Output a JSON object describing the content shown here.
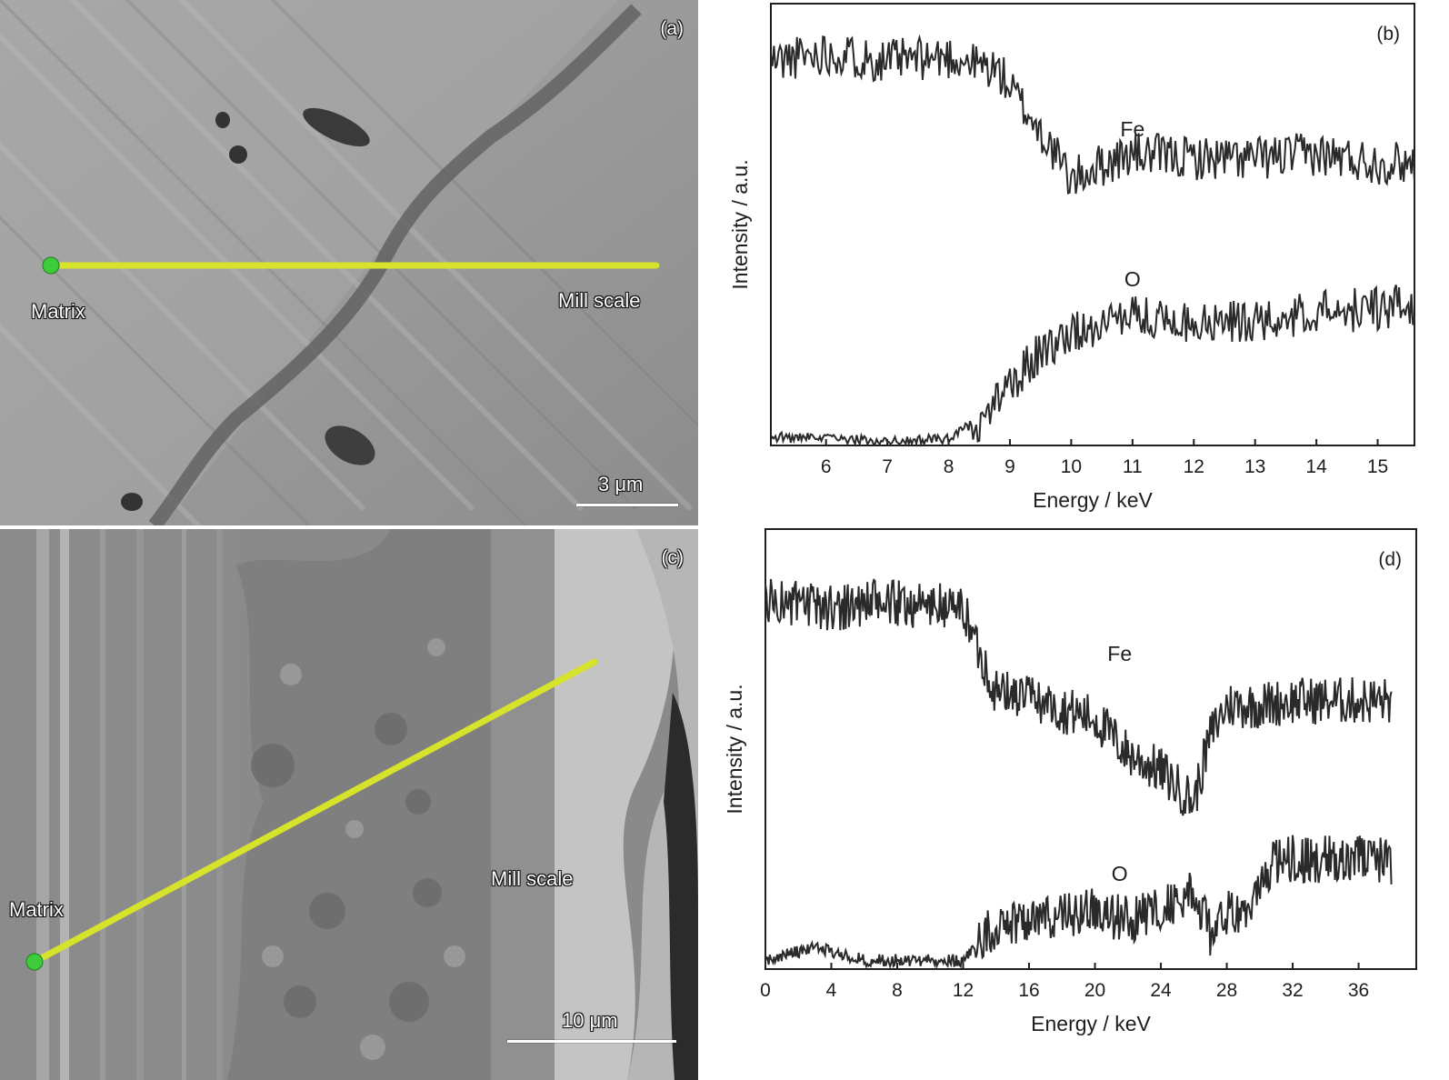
{
  "panels": {
    "a": {
      "letter": "(a)",
      "start_label": "Matrix",
      "end_label": "Mill scale",
      "scale_bar_label": "3 μm"
    },
    "b": {
      "letter": "(b)",
      "chart_data": {
        "type": "line",
        "xlabel": "Energy / keV",
        "ylabel": "Intensity / a.u.",
        "xlim": [
          5.1,
          15.6
        ],
        "ylim": [
          0,
          100
        ],
        "xticks": [
          "6",
          "7",
          "8",
          "9",
          "10",
          "11",
          "12",
          "13",
          "14",
          "15"
        ],
        "yticks": false,
        "grid": false,
        "series": [
          {
            "name": "Fe",
            "color": "#2a2a2a",
            "x": [
              5.1,
              6.0,
              7.0,
              8.0,
              8.8,
              9.2,
              9.6,
              10.0,
              10.4,
              11.0,
              12.0,
              13.0,
              14.0,
              15.0,
              15.6
            ],
            "y": [
              87,
              89,
              87,
              88,
              85,
              77,
              69,
              60,
              63,
              66,
              65,
              65,
              66,
              64,
              64
            ]
          },
          {
            "name": "O",
            "color": "#2a2a2a",
            "x": [
              5.1,
              6.0,
              7.0,
              8.0,
              8.5,
              9.0,
              9.5,
              10.0,
              10.5,
              11.0,
              12.0,
              13.0,
              14.0,
              15.0,
              15.6
            ],
            "y": [
              2,
              1.5,
              1,
              1.5,
              6,
              14,
              21,
              25,
              28,
              29,
              28,
              28,
              30,
              31,
              32
            ]
          }
        ]
      }
    },
    "c": {
      "letter": "(c)",
      "start_label": "Matrix",
      "end_label": "Mill scale",
      "scale_bar_label": "10 μm"
    },
    "d": {
      "letter": "(d)",
      "chart_data": {
        "type": "line",
        "xlabel": "Energy / keV",
        "ylabel": "Intensity / a.u.",
        "xlim": [
          0,
          39.5
        ],
        "ylim": [
          0,
          100
        ],
        "xticks": [
          "0",
          "4",
          "8",
          "12",
          "16",
          "20",
          "24",
          "28",
          "32",
          "36"
        ],
        "yticks": false,
        "grid": false,
        "series": [
          {
            "name": "Fe",
            "color": "#2a2a2a",
            "x": [
              0,
              3,
              6,
              9,
              12,
              13,
              14,
              16,
              18,
              20,
              22,
              24,
              26,
              27,
              28,
              30,
              32,
              34,
              36,
              38
            ],
            "y": [
              84,
              82,
              83,
              83,
              82,
              72,
              63,
              62,
              59,
              57,
              49,
              45,
              38,
              53,
              60,
              60,
              61,
              61,
              61,
              61
            ]
          },
          {
            "name": "O",
            "color": "#2a2a2a",
            "x": [
              0,
              3,
              6,
              9,
              12,
              13,
              14,
              16,
              18,
              20,
              22,
              24,
              26,
              27,
              28,
              30,
              31,
              34,
              36,
              38
            ],
            "y": [
              2,
              5,
              2,
              2,
              2,
              6,
              10,
              12,
              12,
              13,
              11,
              14,
              17,
              8,
              12,
              17,
              25,
              25,
              26,
              24
            ]
          }
        ]
      }
    }
  }
}
